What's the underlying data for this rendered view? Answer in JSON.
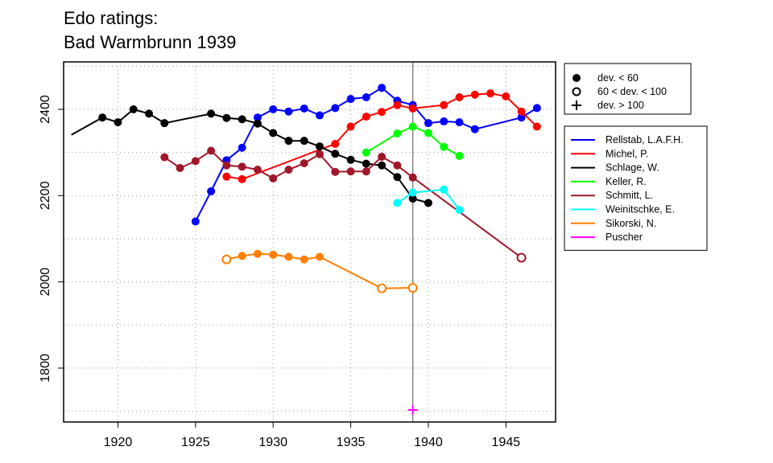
{
  "chart_data": {
    "type": "line",
    "title_line1": "Edo ratings:",
    "title_line2": "Bad Warmbrunn 1939",
    "xlabel": "",
    "ylabel": "",
    "xlim": [
      1916.5,
      1948.2
    ],
    "ylim": [
      1675,
      2510
    ],
    "x_ticks": [
      1920,
      1925,
      1930,
      1935,
      1940,
      1945
    ],
    "y_ticks": [
      1800,
      2000,
      2200,
      2400
    ],
    "y_gridlines": [
      1700,
      1800,
      1900,
      2000,
      2100,
      2200,
      2300,
      2400,
      2500
    ],
    "x_gridlines": [
      1920,
      1925,
      1930,
      1935,
      1940,
      1945
    ],
    "grid": "dotted",
    "marker_year": 1939,
    "dev_legend": {
      "placement": "top-right",
      "entries": [
        {
          "symbol": "filled",
          "label": "dev. < 60"
        },
        {
          "symbol": "open",
          "label": "60 < dev. < 100"
        },
        {
          "symbol": "plus",
          "label": "dev. > 100"
        }
      ]
    },
    "legend_placement": "right",
    "series": [
      {
        "name": "Rellstab, L.A.F.H.",
        "color": "#0000FF",
        "points": [
          {
            "x": 1925,
            "y": 2140,
            "m": "filled"
          },
          {
            "x": 1926,
            "y": 2210,
            "m": "filled"
          },
          {
            "x": 1927,
            "y": 2282,
            "m": "filled"
          },
          {
            "x": 1928,
            "y": 2311,
            "m": "filled"
          },
          {
            "x": 1929,
            "y": 2381,
            "m": "filled"
          },
          {
            "x": 1930,
            "y": 2400,
            "m": "filled"
          },
          {
            "x": 1931,
            "y": 2395,
            "m": "filled"
          },
          {
            "x": 1932,
            "y": 2402,
            "m": "filled"
          },
          {
            "x": 1933,
            "y": 2386,
            "m": "filled"
          },
          {
            "x": 1934,
            "y": 2403,
            "m": "filled"
          },
          {
            "x": 1935,
            "y": 2424,
            "m": "filled"
          },
          {
            "x": 1936,
            "y": 2428,
            "m": "filled"
          },
          {
            "x": 1937,
            "y": 2450,
            "m": "filled"
          },
          {
            "x": 1938,
            "y": 2420,
            "m": "filled"
          },
          {
            "x": 1939,
            "y": 2410,
            "m": "filled"
          },
          {
            "x": 1940,
            "y": 2368,
            "m": "filled"
          },
          {
            "x": 1941,
            "y": 2372,
            "m": "filled"
          },
          {
            "x": 1942,
            "y": 2370,
            "m": "filled"
          },
          {
            "x": 1943,
            "y": 2354,
            "m": "filled"
          },
          {
            "x": 1946,
            "y": 2381,
            "m": "filled"
          },
          {
            "x": 1947,
            "y": 2403,
            "m": "filled"
          }
        ]
      },
      {
        "name": "Michel, P.",
        "color": "#FF0000",
        "points": [
          {
            "x": 1927,
            "y": 2244,
            "m": "filled"
          },
          {
            "x": 1928,
            "y": 2238,
            "m": "filled"
          },
          {
            "x": 1934,
            "y": 2320,
            "m": "filled"
          },
          {
            "x": 1935,
            "y": 2360,
            "m": "filled"
          },
          {
            "x": 1936,
            "y": 2383,
            "m": "filled"
          },
          {
            "x": 1937,
            "y": 2394,
            "m": "filled"
          },
          {
            "x": 1938,
            "y": 2410,
            "m": "filled"
          },
          {
            "x": 1939,
            "y": 2402,
            "m": "filled"
          },
          {
            "x": 1941,
            "y": 2410,
            "m": "filled"
          },
          {
            "x": 1942,
            "y": 2428,
            "m": "filled"
          },
          {
            "x": 1943,
            "y": 2434,
            "m": "filled"
          },
          {
            "x": 1944,
            "y": 2437,
            "m": "filled"
          },
          {
            "x": 1945,
            "y": 2430,
            "m": "filled"
          },
          {
            "x": 1946,
            "y": 2395,
            "m": "filled"
          },
          {
            "x": 1947,
            "y": 2360,
            "m": "filled"
          }
        ]
      },
      {
        "name": "Schlage, W.",
        "color": "#000000",
        "points": [
          {
            "x": 1917,
            "y": 2341,
            "m": "none"
          },
          {
            "x": 1919,
            "y": 2381,
            "m": "filled"
          },
          {
            "x": 1920,
            "y": 2370,
            "m": "filled"
          },
          {
            "x": 1921,
            "y": 2400,
            "m": "filled"
          },
          {
            "x": 1922,
            "y": 2390,
            "m": "filled"
          },
          {
            "x": 1923,
            "y": 2368,
            "m": "filled"
          },
          {
            "x": 1926,
            "y": 2390,
            "m": "filled"
          },
          {
            "x": 1927,
            "y": 2380,
            "m": "filled"
          },
          {
            "x": 1928,
            "y": 2377,
            "m": "filled"
          },
          {
            "x": 1929,
            "y": 2367,
            "m": "filled"
          },
          {
            "x": 1930,
            "y": 2345,
            "m": "filled"
          },
          {
            "x": 1931,
            "y": 2327,
            "m": "filled"
          },
          {
            "x": 1932,
            "y": 2327,
            "m": "filled"
          },
          {
            "x": 1933,
            "y": 2314,
            "m": "filled"
          },
          {
            "x": 1934,
            "y": 2297,
            "m": "filled"
          },
          {
            "x": 1935,
            "y": 2283,
            "m": "filled"
          },
          {
            "x": 1936,
            "y": 2274,
            "m": "filled"
          },
          {
            "x": 1937,
            "y": 2270,
            "m": "filled"
          },
          {
            "x": 1938,
            "y": 2243,
            "m": "filled"
          },
          {
            "x": 1939,
            "y": 2193,
            "m": "filled"
          },
          {
            "x": 1940,
            "y": 2183,
            "m": "filled"
          }
        ]
      },
      {
        "name": "Keller, R.",
        "color": "#00FF00",
        "points": [
          {
            "x": 1936,
            "y": 2300,
            "m": "filled"
          },
          {
            "x": 1938,
            "y": 2344,
            "m": "filled"
          },
          {
            "x": 1939,
            "y": 2360,
            "m": "filled"
          },
          {
            "x": 1940,
            "y": 2345,
            "m": "filled"
          },
          {
            "x": 1941,
            "y": 2313,
            "m": "filled"
          },
          {
            "x": 1942,
            "y": 2292,
            "m": "filled"
          }
        ]
      },
      {
        "name": "Schmitt, L.",
        "color": "#A0172A",
        "points": [
          {
            "x": 1923,
            "y": 2289,
            "m": "filled"
          },
          {
            "x": 1924,
            "y": 2264,
            "m": "filled"
          },
          {
            "x": 1925,
            "y": 2280,
            "m": "filled"
          },
          {
            "x": 1926,
            "y": 2304,
            "m": "filled"
          },
          {
            "x": 1927,
            "y": 2270,
            "m": "filled"
          },
          {
            "x": 1928,
            "y": 2267,
            "m": "filled"
          },
          {
            "x": 1929,
            "y": 2260,
            "m": "filled"
          },
          {
            "x": 1930,
            "y": 2240,
            "m": "filled"
          },
          {
            "x": 1931,
            "y": 2260,
            "m": "filled"
          },
          {
            "x": 1932,
            "y": 2275,
            "m": "filled"
          },
          {
            "x": 1933,
            "y": 2296,
            "m": "filled"
          },
          {
            "x": 1934,
            "y": 2255,
            "m": "filled"
          },
          {
            "x": 1935,
            "y": 2256,
            "m": "filled"
          },
          {
            "x": 1936,
            "y": 2256,
            "m": "filled"
          },
          {
            "x": 1937,
            "y": 2290,
            "m": "filled"
          },
          {
            "x": 1938,
            "y": 2270,
            "m": "filled"
          },
          {
            "x": 1939,
            "y": 2242,
            "m": "filled"
          },
          {
            "x": 1946,
            "y": 2056,
            "m": "open"
          }
        ]
      },
      {
        "name": "Weinitschke, E.",
        "color": "#00FFFF",
        "points": [
          {
            "x": 1938,
            "y": 2183,
            "m": "filled"
          },
          {
            "x": 1939,
            "y": 2207,
            "m": "filled"
          },
          {
            "x": 1941,
            "y": 2214,
            "m": "filled"
          },
          {
            "x": 1942,
            "y": 2167,
            "m": "filled"
          }
        ]
      },
      {
        "name": "Sikorski, N.",
        "color": "#FF7F00",
        "points": [
          {
            "x": 1927,
            "y": 2052,
            "m": "open"
          },
          {
            "x": 1928,
            "y": 2060,
            "m": "filled"
          },
          {
            "x": 1929,
            "y": 2065,
            "m": "filled"
          },
          {
            "x": 1930,
            "y": 2063,
            "m": "filled"
          },
          {
            "x": 1931,
            "y": 2058,
            "m": "filled"
          },
          {
            "x": 1932,
            "y": 2052,
            "m": "filled"
          },
          {
            "x": 1933,
            "y": 2058,
            "m": "filled"
          },
          {
            "x": 1937,
            "y": 1985,
            "m": "open"
          },
          {
            "x": 1939,
            "y": 1986,
            "m": "open"
          }
        ]
      },
      {
        "name": "Puscher",
        "color": "#FF00FF",
        "points": [
          {
            "x": 1939,
            "y": 1703,
            "m": "plus"
          }
        ]
      }
    ]
  }
}
